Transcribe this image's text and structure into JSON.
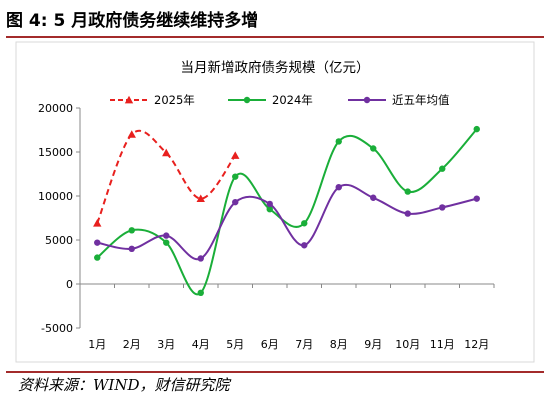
{
  "figure": {
    "title": "图 4:  5 月政府债务继续维持多增",
    "source": "资料来源：WIND，财信研究院"
  },
  "chart_data": {
    "type": "line",
    "title": "当月新增政府债务规模（亿元）",
    "xlabel": "",
    "ylabel": "",
    "categories": [
      "1月",
      "2月",
      "3月",
      "4月",
      "5月",
      "6月",
      "7月",
      "8月",
      "9月",
      "10月",
      "11月",
      "12月"
    ],
    "ylim": [
      -5000,
      20000
    ],
    "yticks": [
      -5000,
      0,
      5000,
      10000,
      15000,
      20000
    ],
    "ytick_labels": [
      "-5000",
      "0",
      "5000",
      "10000",
      "15000",
      "20000"
    ],
    "grid": false,
    "legend_position": "top",
    "series": [
      {
        "name": "2025年",
        "color": "#e8201e",
        "style": "dashed",
        "marker": "triangle",
        "values": [
          6900,
          17000,
          14900,
          9700,
          14600,
          null,
          null,
          null,
          null,
          null,
          null,
          null
        ]
      },
      {
        "name": "2024年",
        "color": "#1aae39",
        "style": "solid",
        "marker": "circle",
        "values": [
          3000,
          6100,
          4700,
          -1000,
          12200,
          8500,
          6900,
          16200,
          15400,
          10500,
          13100,
          17600
        ]
      },
      {
        "name": "近五年均值",
        "color": "#7030a0",
        "style": "solid",
        "marker": "circle",
        "values": [
          4700,
          4000,
          5500,
          2900,
          9300,
          9100,
          4400,
          11000,
          9800,
          8000,
          8700,
          9700
        ]
      }
    ]
  }
}
